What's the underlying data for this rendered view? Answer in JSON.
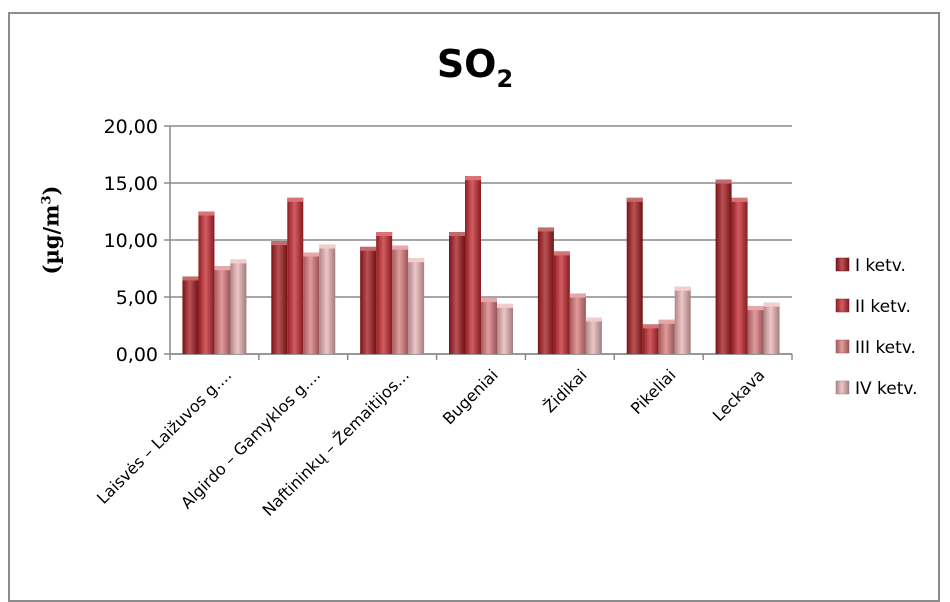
{
  "chart_data": {
    "type": "bar",
    "title": "SO",
    "title_subscript": "2",
    "ylabel": "(µg/m",
    "ylabel_superscript": "3",
    "ylabel_close": ")",
    "ylim": [
      0,
      20
    ],
    "yticks": [
      "0,00",
      "5,00",
      "10,00",
      "15,00",
      "20,00"
    ],
    "ytick_values": [
      0,
      5,
      10,
      15,
      20
    ],
    "grid": true,
    "legend_position": "right",
    "categories": [
      "Laisvės – Laižuvos g....",
      "Algirdo – Gamyklos g....",
      "Naftininkų – Žemaitijos...",
      "Bugeniai",
      "Židikai",
      "Pikeliai",
      "Leckava"
    ],
    "series": [
      {
        "name": "I ketv.",
        "color": "#a3191e",
        "values": [
          6.8,
          9.9,
          9.4,
          10.7,
          11.1,
          13.7,
          15.3
        ]
      },
      {
        "name": "II ketv.",
        "color": "#c1272d",
        "values": [
          12.5,
          13.7,
          10.7,
          15.6,
          9.0,
          2.6,
          13.7
        ]
      },
      {
        "name": "III ketv.",
        "color": "#d9787a",
        "values": [
          7.7,
          8.9,
          9.5,
          4.9,
          5.3,
          3.0,
          4.2
        ]
      },
      {
        "name": "IV ketv.",
        "color": "#e8b3b4",
        "values": [
          8.3,
          9.6,
          8.4,
          4.4,
          3.2,
          5.9,
          4.5
        ]
      }
    ]
  }
}
